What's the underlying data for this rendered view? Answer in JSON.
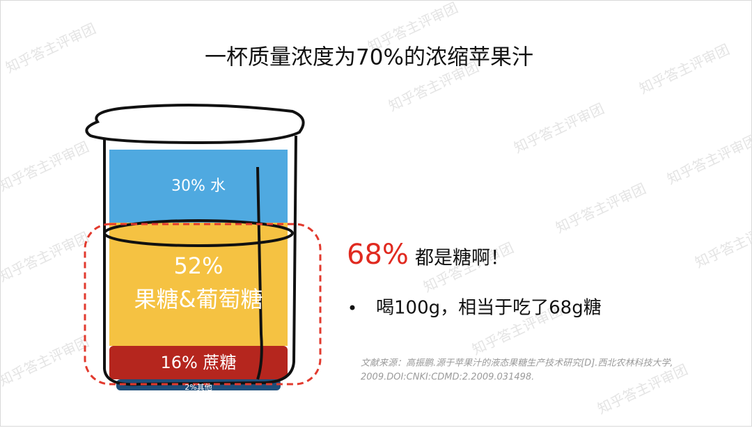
{
  "title": "一杯质量浓度为70%的浓缩苹果汁",
  "beaker": {
    "layers": [
      {
        "label": "30% 水"
      },
      {
        "label": "52%",
        "sublabel": "果糖&葡萄糖"
      },
      {
        "label": "16% 蔗糖"
      },
      {
        "label": "2%其他"
      }
    ]
  },
  "highlight": {
    "value": "68%",
    "text": "都是糖啊！"
  },
  "bullets": [
    "喝100g，相当于吃了68g糖"
  ],
  "source": [
    "文献来源：高振鹏.源于苹果汁的液态果糖生产技术研究[D].西北农林科技大学,",
    "2009.DOI:CNKI:CDMD:2.2009.031498."
  ],
  "watermark": "知乎答主评审团"
}
